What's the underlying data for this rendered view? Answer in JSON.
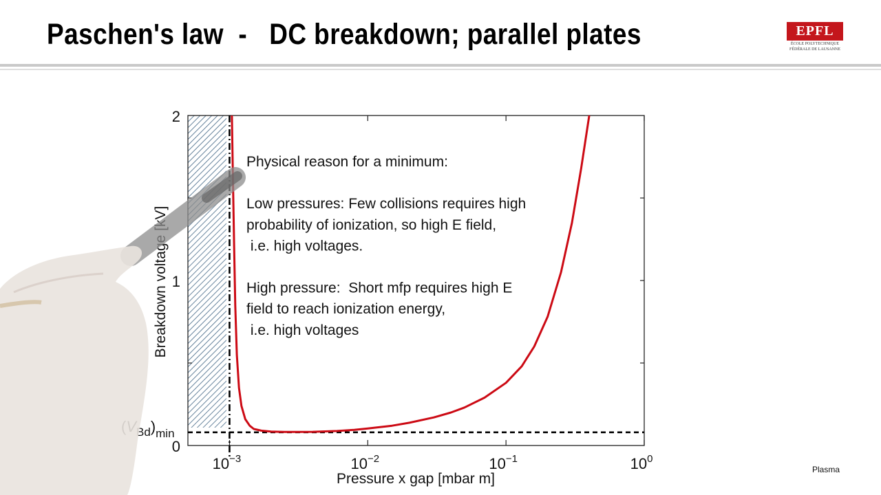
{
  "header": {
    "title": "Paschen's law  -   DC breakdown; parallel plates",
    "logo_main": "EPFL",
    "logo_line1": "ÉCOLE POLYTECHNIQUE",
    "logo_line2": "FÉDÉRALE DE LAUSANNE"
  },
  "footer": {
    "label": "Plasma"
  },
  "colors": {
    "curve": "#cc0a14",
    "hatch": "#1f4a6e",
    "text": "#000000"
  },
  "annotation": {
    "lines": [
      "Physical reason for a minimum:",
      "",
      "Low pressures: Few collisions requires high",
      "probability of ionization, so high E field,",
      " i.e. high voltages.",
      "",
      "High pressure:  Short mfp requires high E",
      "field to reach ionization energy,",
      " i.e. high voltages"
    ]
  },
  "chart_data": {
    "type": "line",
    "xlabel": "Pressure x gap [mbar m]",
    "ylabel": "Breakdown voltage [kV]",
    "xscale": "log",
    "xlim": [
      0.0005,
      1
    ],
    "ylim": [
      0,
      2
    ],
    "x_ticks": [
      {
        "value": 0.001,
        "base": "10",
        "exp": "−3"
      },
      {
        "value": 0.01,
        "base": "10",
        "exp": "−2"
      },
      {
        "value": 0.1,
        "base": "10",
        "exp": "−1"
      },
      {
        "value": 1,
        "base": "10",
        "exp": "0"
      }
    ],
    "y_ticks": [
      {
        "value": 0,
        "label": "0"
      },
      {
        "value": 1,
        "label": "1"
      },
      {
        "value": 2,
        "label": "2"
      }
    ],
    "y_minor_ticks": [
      0.5,
      1.5
    ],
    "min_line": {
      "y": 0.08,
      "label_base": "V",
      "label_sub1": "Bd",
      "label_sub2": "min"
    },
    "vline": {
      "x": 0.001
    },
    "hatched_region": {
      "x_from": 0.0005,
      "x_to": 0.00095
    },
    "series": [
      {
        "x": [
          0.00104,
          0.00106,
          0.00108,
          0.0011,
          0.00113,
          0.00117,
          0.00122,
          0.0013,
          0.0014,
          0.0015,
          0.0017,
          0.002,
          0.0025,
          0.003,
          0.004,
          0.006,
          0.008,
          0.01,
          0.015,
          0.02,
          0.03,
          0.04,
          0.05,
          0.07,
          0.1,
          0.13,
          0.16,
          0.2,
          0.25,
          0.3,
          0.35,
          0.4
        ],
        "y": [
          2.0,
          1.6,
          1.2,
          0.85,
          0.55,
          0.35,
          0.24,
          0.16,
          0.12,
          0.1,
          0.09,
          0.084,
          0.082,
          0.082,
          0.083,
          0.088,
          0.095,
          0.103,
          0.12,
          0.138,
          0.17,
          0.2,
          0.23,
          0.29,
          0.38,
          0.48,
          0.6,
          0.78,
          1.05,
          1.35,
          1.68,
          2.0
        ]
      }
    ]
  }
}
